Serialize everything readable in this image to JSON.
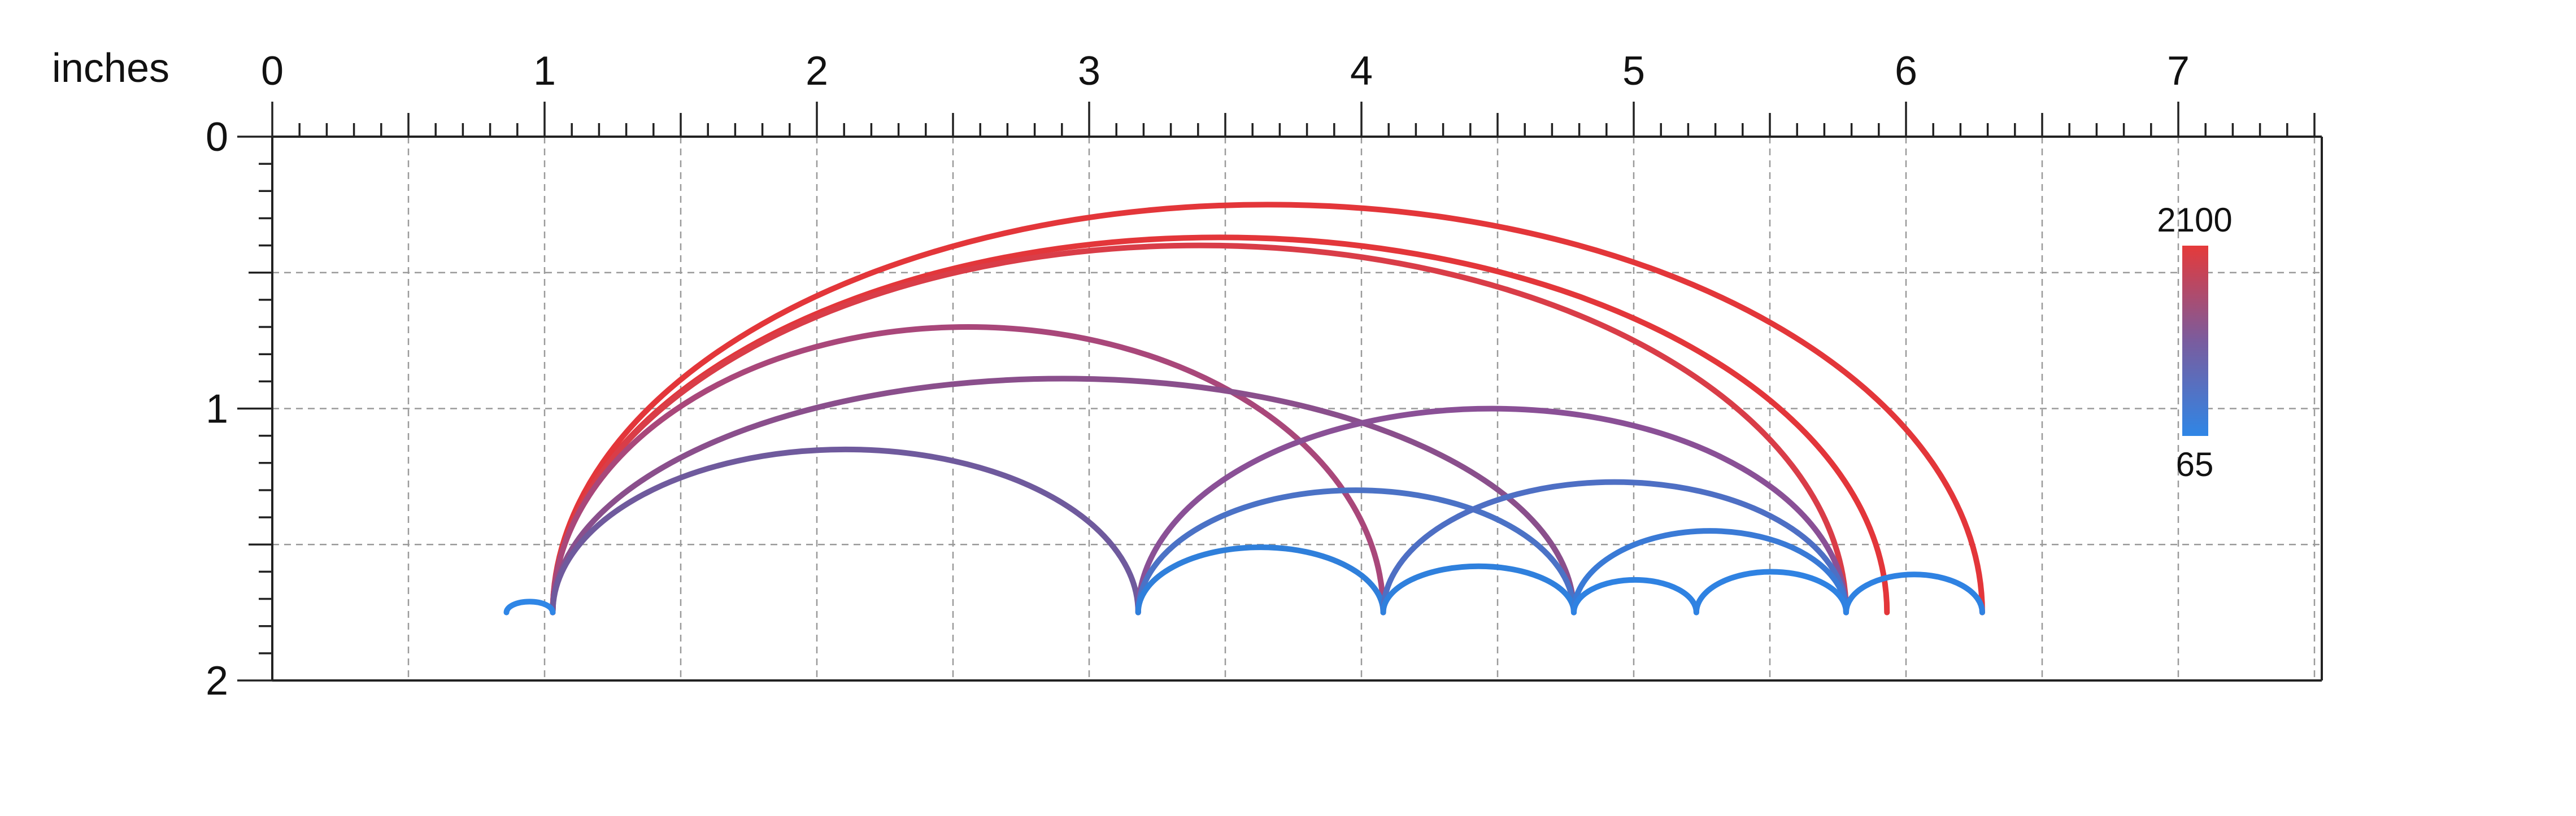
{
  "ruler": {
    "unit_label": "inches",
    "x_ticks": [
      "0",
      "1",
      "2",
      "3",
      "4",
      "5",
      "6",
      "7"
    ],
    "y_ticks": [
      "0",
      "1",
      "2"
    ],
    "x_range": [
      0,
      7.5
    ],
    "y_range": [
      0,
      2
    ],
    "grid": true
  },
  "colorbar": {
    "max_label": "2100",
    "min_label": "65",
    "max_color": "#e53a3a",
    "mid_color": "#7a5c9e",
    "min_color": "#2f86e6"
  },
  "baseline_y": 1.75,
  "arcs": [
    {
      "x1": 1.03,
      "x2": 6.28,
      "height": 1.5,
      "color": "#e3363a"
    },
    {
      "x1": 1.03,
      "x2": 5.93,
      "height": 1.38,
      "color": "#e3363a"
    },
    {
      "x1": 1.03,
      "x2": 5.78,
      "height": 1.35,
      "color": "#d93d48"
    },
    {
      "x1": 1.03,
      "x2": 4.08,
      "height": 1.05,
      "color": "#a9477a"
    },
    {
      "x1": 1.03,
      "x2": 4.78,
      "height": 0.86,
      "color": "#8a4f8c"
    },
    {
      "x1": 1.03,
      "x2": 3.18,
      "height": 0.6,
      "color": "#6f5a9d"
    },
    {
      "x1": 3.18,
      "x2": 5.78,
      "height": 0.75,
      "color": "#8a5096"
    },
    {
      "x1": 3.18,
      "x2": 4.78,
      "height": 0.45,
      "color": "#4b72c6"
    },
    {
      "x1": 3.18,
      "x2": 4.08,
      "height": 0.24,
      "color": "#2f7fdb"
    },
    {
      "x1": 4.08,
      "x2": 5.78,
      "height": 0.48,
      "color": "#4e6fc4"
    },
    {
      "x1": 4.08,
      "x2": 4.78,
      "height": 0.17,
      "color": "#2f80dd"
    },
    {
      "x1": 4.78,
      "x2": 5.78,
      "height": 0.3,
      "color": "#3a7ad6"
    },
    {
      "x1": 4.78,
      "x2": 5.23,
      "height": 0.12,
      "color": "#2f82e2"
    },
    {
      "x1": 5.23,
      "x2": 5.78,
      "height": 0.15,
      "color": "#2f82e2"
    },
    {
      "x1": 5.78,
      "x2": 6.28,
      "height": 0.14,
      "color": "#2f82e2"
    },
    {
      "x1": 0.86,
      "x2": 1.03,
      "height": 0.04,
      "color": "#2f86e6"
    }
  ]
}
